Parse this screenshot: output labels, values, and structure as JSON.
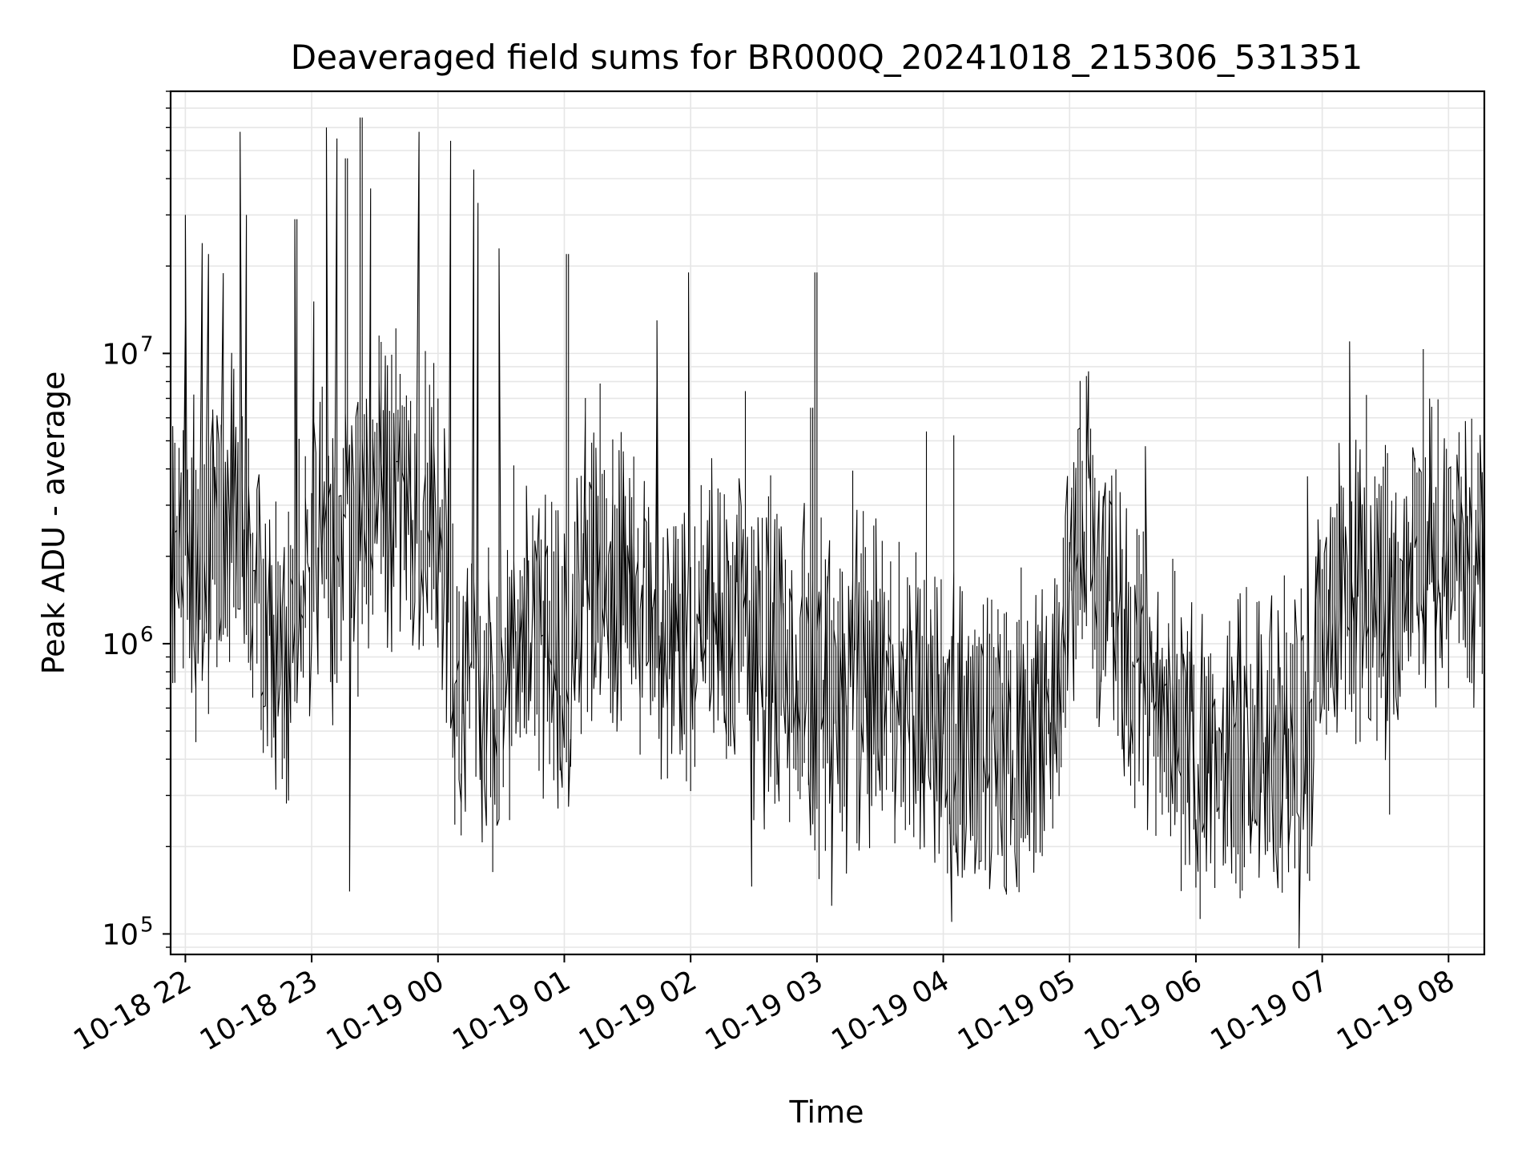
{
  "chart_data": {
    "type": "line",
    "title": "Deaveraged field sums for BR000Q_20241018_215306_531351",
    "xlabel": "Time",
    "ylabel": "Peak ADU - average",
    "yscale": "log",
    "grid": true,
    "line_color": "#000000",
    "grid_color": "#e6e6e6",
    "xlim": [
      "2024-10-18 21:53",
      "2024-10-19 08:17"
    ],
    "ylim": [
      85000,
      80000000
    ],
    "x_ticks": [
      {
        "value": "2024-10-18 22:00",
        "label": "10-18 22"
      },
      {
        "value": "2024-10-18 23:00",
        "label": "10-18 23"
      },
      {
        "value": "2024-10-19 00:00",
        "label": "10-19 00"
      },
      {
        "value": "2024-10-19 01:00",
        "label": "10-19 01"
      },
      {
        "value": "2024-10-19 02:00",
        "label": "10-19 02"
      },
      {
        "value": "2024-10-19 03:00",
        "label": "10-19 03"
      },
      {
        "value": "2024-10-19 04:00",
        "label": "10-19 04"
      },
      {
        "value": "2024-10-19 05:00",
        "label": "10-19 05"
      },
      {
        "value": "2024-10-19 06:00",
        "label": "10-19 06"
      },
      {
        "value": "2024-10-19 07:00",
        "label": "10-19 07"
      },
      {
        "value": "2024-10-19 08:00",
        "label": "10-19 08"
      }
    ],
    "y_ticks": [
      {
        "value": 100000,
        "base": "10",
        "exp": "5"
      },
      {
        "value": 1000000,
        "base": "10",
        "exp": "6"
      },
      {
        "value": 10000000,
        "base": "10",
        "exp": "7"
      }
    ],
    "series": [
      {
        "x": [
          "2024-10-18 21:53",
          "2024-10-18 22:00",
          "2024-10-18 22:07",
          "2024-10-18 22:12",
          "2024-10-18 22:18",
          "2024-10-18 22:25",
          "2024-10-18 22:28",
          "2024-10-18 22:35",
          "2024-10-18 22:42",
          "2024-10-18 22:50",
          "2024-10-18 23:00",
          "2024-10-18 23:08",
          "2024-10-18 23:12",
          "2024-10-18 23:18",
          "2024-10-18 23:23",
          "2024-10-18 23:30",
          "2024-10-18 23:40",
          "2024-10-18 23:50",
          "2024-10-18 23:58",
          "2024-10-19 00:05",
          "2024-10-19 00:10",
          "2024-10-19 00:17",
          "2024-10-19 00:20",
          "2024-10-19 00:32",
          "2024-10-19 00:45",
          "2024-10-19 00:55",
          "2024-10-19 01:02",
          "2024-10-19 01:10",
          "2024-10-19 01:17",
          "2024-10-19 01:25",
          "2024-10-19 01:32",
          "2024-10-19 01:45",
          "2024-10-19 02:00",
          "2024-10-19 02:15",
          "2024-10-19 02:30",
          "2024-10-19 02:45",
          "2024-10-19 02:55",
          "2024-10-19 03:00",
          "2024-10-19 03:08",
          "2024-10-19 03:15",
          "2024-10-19 03:25",
          "2024-10-19 03:35",
          "2024-10-19 03:45",
          "2024-10-19 03:55",
          "2024-10-19 04:05",
          "2024-10-19 04:15",
          "2024-10-19 04:25",
          "2024-10-19 04:35",
          "2024-10-19 04:45",
          "2024-10-19 04:55",
          "2024-10-19 05:00",
          "2024-10-19 05:10",
          "2024-10-19 05:15",
          "2024-10-19 05:25",
          "2024-10-19 05:35",
          "2024-10-19 05:45",
          "2024-10-19 05:55",
          "2024-10-19 06:05",
          "2024-10-19 06:15",
          "2024-10-19 06:25",
          "2024-10-19 06:35",
          "2024-10-19 06:45",
          "2024-10-19 06:55",
          "2024-10-19 07:00",
          "2024-10-19 07:10",
          "2024-10-19 07:15",
          "2024-10-19 07:25",
          "2024-10-19 07:35",
          "2024-10-19 07:45",
          "2024-10-19 07:55",
          "2024-10-19 08:05",
          "2024-10-19 08:17"
        ],
        "y": [
          2000000,
          2500000,
          1500000,
          2000000,
          2500000,
          3000000,
          2800000,
          1500000,
          800000,
          1000000,
          2000000,
          2500000,
          1200000,
          3000000,
          2500000,
          3200000,
          3500000,
          3000000,
          2500000,
          1500000,
          500000,
          1000000,
          700000,
          700000,
          1200000,
          900000,
          700000,
          1800000,
          2000000,
          1500000,
          1600000,
          1200000,
          1000000,
          1300000,
          900000,
          900000,
          600000,
          550000,
          700000,
          750000,
          800000,
          750000,
          650000,
          600000,
          500000,
          400000,
          450000,
          500000,
          450000,
          600000,
          2000000,
          3000000,
          1500000,
          1200000,
          800000,
          700000,
          500000,
          350000,
          400000,
          500000,
          450000,
          500000,
          500000,
          1200000,
          1500000,
          1600000,
          1500000,
          1400000,
          1800000,
          2000000,
          2000000,
          1800000
        ],
        "spikes": [
          {
            "x": "2024-10-18 22:00",
            "y": 13000000
          },
          {
            "x": "2024-10-18 22:01",
            "y": 30000000
          },
          {
            "x": "2024-10-18 22:08",
            "y": 24000000
          },
          {
            "x": "2024-10-18 22:11",
            "y": 22000000
          },
          {
            "x": "2024-10-18 22:27",
            "y": 58000000
          },
          {
            "x": "2024-10-18 22:29",
            "y": 30000000
          },
          {
            "x": "2024-10-18 22:53",
            "y": 29000000
          },
          {
            "x": "2024-10-18 23:08",
            "y": 60000000
          },
          {
            "x": "2024-10-18 23:12",
            "y": 55000000
          },
          {
            "x": "2024-10-18 23:17",
            "y": 47000000
          },
          {
            "x": "2024-10-18 23:24",
            "y": 65000000
          },
          {
            "x": "2024-10-18 23:28",
            "y": 37000000
          },
          {
            "x": "2024-10-18 23:51",
            "y": 58000000
          },
          {
            "x": "2024-10-19 00:06",
            "y": 54000000
          },
          {
            "x": "2024-10-19 00:17",
            "y": 43000000
          },
          {
            "x": "2024-10-19 00:19",
            "y": 33000000
          },
          {
            "x": "2024-10-19 00:30",
            "y": 23000000
          },
          {
            "x": "2024-10-19 01:02",
            "y": 22000000
          },
          {
            "x": "2024-10-19 01:45",
            "y": 13000000
          },
          {
            "x": "2024-10-19 02:00",
            "y": 19000000
          },
          {
            "x": "2024-10-19 02:58",
            "y": 6500000
          },
          {
            "x": "2024-10-19 03:00",
            "y": 19000000
          },
          {
            "x": "2024-10-19 07:14",
            "y": 11000000
          }
        ],
        "dips": [
          {
            "x": "2024-10-18 23:19",
            "y": 140000
          },
          {
            "x": "2024-10-19 03:08",
            "y": 125000
          },
          {
            "x": "2024-10-19 04:04",
            "y": 110000
          },
          {
            "x": "2024-10-19 04:35",
            "y": 145000
          },
          {
            "x": "2024-10-19 06:08",
            "y": 175000
          }
        ]
      }
    ]
  }
}
